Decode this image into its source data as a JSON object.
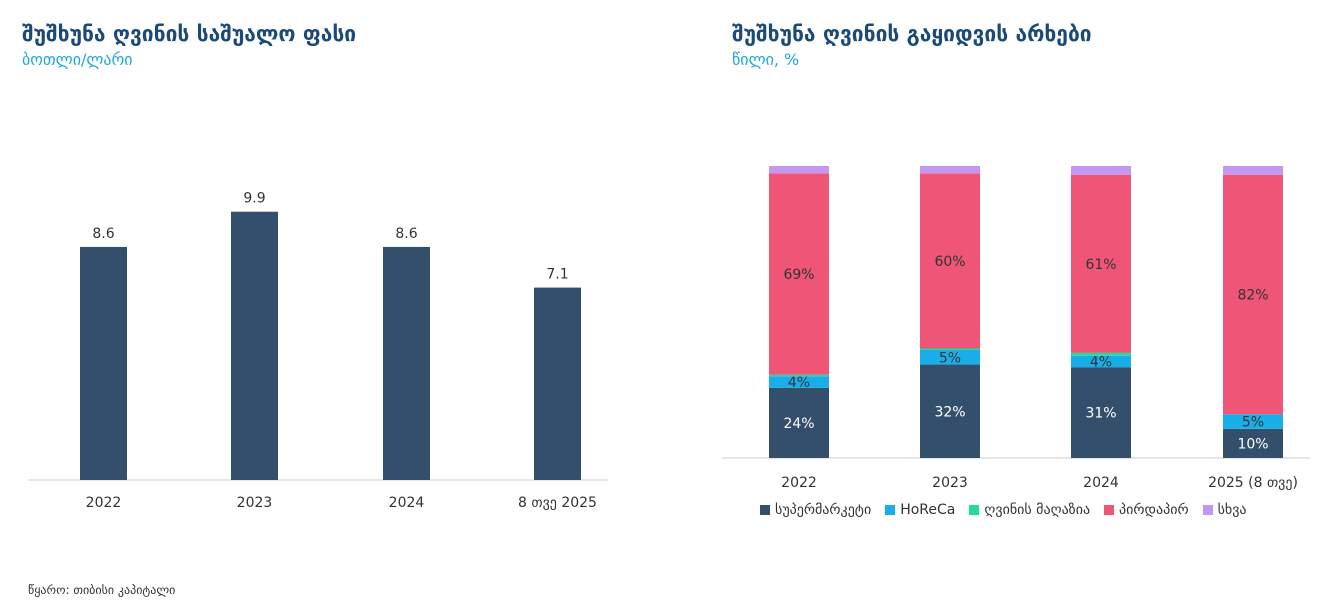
{
  "source": "წყარო: თიბისი კაპიტალი",
  "chart_data": [
    {
      "type": "bar",
      "title": "შუშხუნა ღვინის საშუალო ფასი",
      "subtitle": "ბოთლი/ლარი",
      "categories": [
        "2022",
        "2023",
        "2024",
        "8 თვე 2025"
      ],
      "values": [
        8.6,
        9.9,
        8.6,
        7.1
      ],
      "value_labels": [
        "8.6",
        "9.9",
        "8.6",
        "7.1"
      ],
      "ylim": [
        0,
        10
      ],
      "color": "#344f6b"
    },
    {
      "type": "bar",
      "stacked": true,
      "title": "შუშხუნა ღვინის გაყიდვის არხები",
      "subtitle": "წილი, %",
      "categories": [
        "2022",
        "2023",
        "2024",
        "2025 (8 თვე)"
      ],
      "ylim": [
        0,
        100
      ],
      "legend_position": "bottom",
      "series": [
        {
          "name": "სუპერმარკეტი",
          "color": "#344f6b",
          "values": [
            24,
            32,
            31,
            10
          ],
          "labels": [
            "24%",
            "32%",
            "31%",
            "10%"
          ],
          "label_color": "#ffffff"
        },
        {
          "name": "HoReCa",
          "color": "#1aaee8",
          "values": [
            4,
            5,
            4,
            5
          ],
          "labels": [
            "4%",
            "5%",
            "4%",
            "5%"
          ],
          "label_color": "#333333"
        },
        {
          "name": "ღვინის მაღაზია",
          "color": "#1fdc9c",
          "values": [
            0.5,
            0.5,
            1,
            0
          ],
          "labels": [
            "",
            "",
            "",
            ""
          ],
          "label_color": "#333333"
        },
        {
          "name": "პირდაპირ",
          "color": "#ee5577",
          "values": [
            69,
            60,
            61,
            82
          ],
          "labels": [
            "69%",
            "60%",
            "61%",
            "82%"
          ],
          "label_color": "#333333"
        },
        {
          "name": "სხვა",
          "color": "#c497f0",
          "values": [
            2.5,
            2.5,
            3,
            3
          ],
          "labels": [
            "",
            "",
            "",
            ""
          ],
          "label_color": "#333333"
        }
      ]
    }
  ]
}
